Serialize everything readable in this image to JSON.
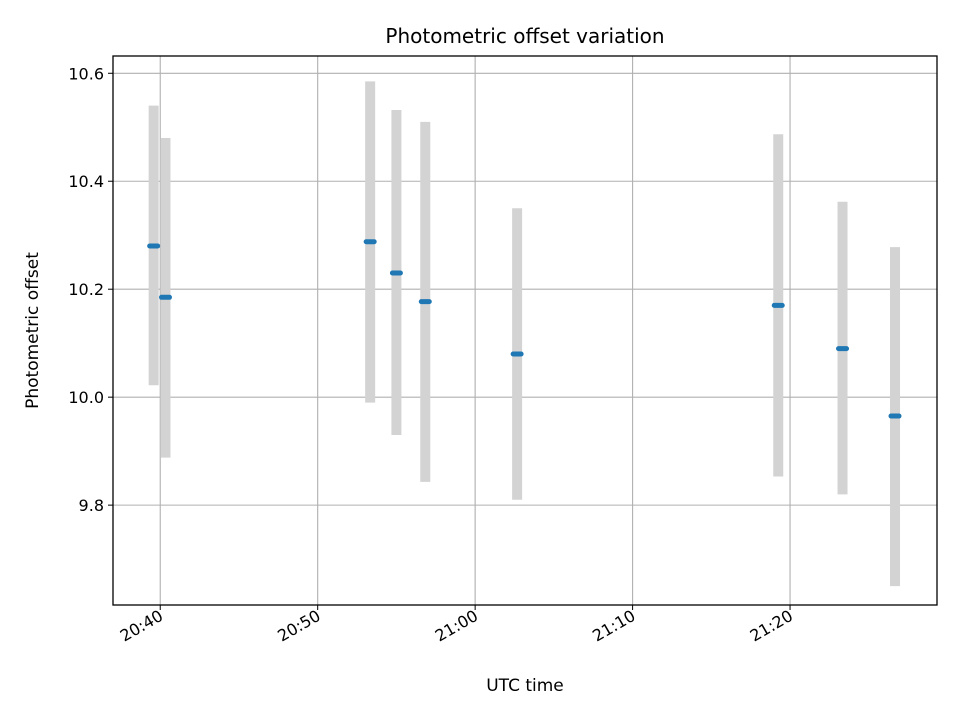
{
  "chart_data": {
    "type": "scatter",
    "title": "Photometric offset variation",
    "xlabel": "UTC time",
    "ylabel": "Photometric offset",
    "x_ticks": [
      "20:40",
      "20:50",
      "21:00",
      "21:10",
      "21:20"
    ],
    "y_ticks": [
      "9.8",
      "10.0",
      "10.2",
      "10.4",
      "10.6"
    ],
    "xlim": [
      "20:37:00",
      "21:29:20"
    ],
    "ylim": [
      9.615,
      10.632
    ],
    "grid": true,
    "series": [
      {
        "marker_color": "#1f77b4",
        "errorbar_color": "#d3d3d3",
        "points": [
          {
            "x": "20:39:35",
            "y": 10.28,
            "yerr_low": 10.022,
            "yerr_high": 10.54
          },
          {
            "x": "20:40:20",
            "y": 10.185,
            "yerr_low": 9.888,
            "yerr_high": 10.48
          },
          {
            "x": "20:53:20",
            "y": 10.288,
            "yerr_low": 9.99,
            "yerr_high": 10.585
          },
          {
            "x": "20:55:00",
            "y": 10.23,
            "yerr_low": 9.93,
            "yerr_high": 10.532
          },
          {
            "x": "20:56:50",
            "y": 10.177,
            "yerr_low": 9.843,
            "yerr_high": 10.51
          },
          {
            "x": "21:02:40",
            "y": 10.08,
            "yerr_low": 9.81,
            "yerr_high": 10.35
          },
          {
            "x": "21:19:15",
            "y": 10.17,
            "yerr_low": 9.853,
            "yerr_high": 10.487
          },
          {
            "x": "21:23:20",
            "y": 10.09,
            "yerr_low": 9.82,
            "yerr_high": 10.362
          },
          {
            "x": "21:26:40",
            "y": 9.965,
            "yerr_low": 9.65,
            "yerr_high": 10.278
          }
        ]
      }
    ]
  }
}
